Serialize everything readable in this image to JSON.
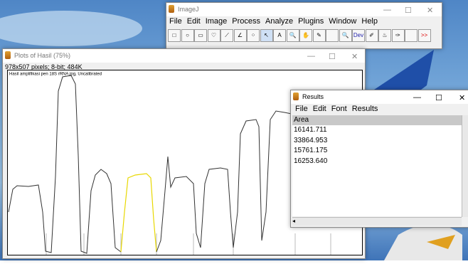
{
  "imagej": {
    "title": "ImageJ",
    "menu": [
      "File",
      "Edit",
      "Image",
      "Process",
      "Analyze",
      "Plugins",
      "Window",
      "Help"
    ],
    "tool_dev": "Dev",
    "tool_more": ">>"
  },
  "plot_window": {
    "title": "Plots of Hasil (75%)",
    "info": "978x507 pixels; 8-bit; 484K",
    "plot_label": "Hasil amplifikasi pen 18S rRNA.jpg, Uncalibrated"
  },
  "results": {
    "title": "Results",
    "menu": [
      "File",
      "Edit",
      "Font",
      "Results"
    ],
    "header": "Area",
    "rows": [
      "16141.711",
      "33864.953",
      "15761.175",
      "16253.640"
    ]
  }
}
